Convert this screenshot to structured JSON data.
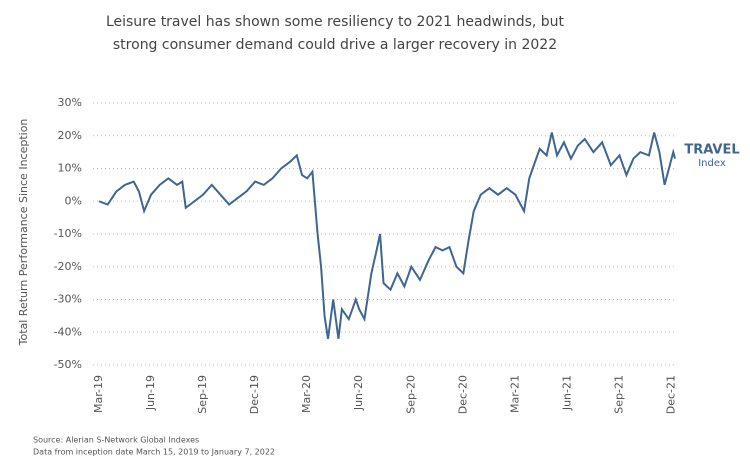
{
  "chart_data": {
    "type": "line",
    "title": [
      "Leisure travel has shown some resiliency to 2021 headwinds, but",
      "strong consumer demand could drive a larger recovery in 2022"
    ],
    "y_label": "Total Return Performance Since Inception",
    "sources": [
      "Source: Alerian S-Network Global Indexes",
      "Data from inception date March 15, 2019 to January 7, 2022"
    ],
    "x": [
      0,
      0.5,
      1,
      1.5,
      2,
      2.3,
      2.6,
      3,
      3.5,
      4,
      4.5,
      4.8,
      5,
      5.5,
      6,
      6.5,
      7,
      7.5,
      8,
      8.5,
      9,
      9.5,
      10,
      10.5,
      11,
      11.4,
      11.7,
      12,
      12.3,
      12.6,
      12.8,
      13,
      13.2,
      13.5,
      13.8,
      14,
      14.4,
      14.8,
      15,
      15.3,
      15.7,
      16,
      16.2,
      16.4,
      16.8,
      17.2,
      17.6,
      18,
      18.5,
      19,
      19.4,
      19.8,
      20.2,
      20.6,
      21,
      21.3,
      21.6,
      22,
      22.5,
      23,
      23.5,
      24,
      24.5,
      24.8,
      25,
      25.4,
      25.8,
      26.1,
      26.4,
      26.8,
      27.2,
      27.6,
      28,
      28.5,
      29,
      29.5,
      30,
      30.4,
      30.8,
      31.2,
      31.7,
      32,
      32.3,
      32.6,
      32.9,
      33.1,
      33.2
    ],
    "series": [
      {
        "name": "TRAVEL",
        "sublabel": "Index",
        "color": "#3f6593",
        "values": [
          0,
          -1,
          3,
          5,
          6,
          3,
          -3,
          2,
          5,
          7,
          5,
          6,
          -2,
          0,
          2,
          5,
          2,
          -1,
          1,
          3,
          6,
          5,
          7,
          10,
          12,
          14,
          8,
          7,
          9,
          -10,
          -20,
          -35,
          -42,
          -30,
          -42,
          -33,
          -36,
          -30,
          -33,
          -36,
          -22,
          -15,
          -10,
          -25,
          -27,
          -22,
          -26,
          -20,
          -24,
          -18,
          -14,
          -15,
          -14,
          -20,
          -22,
          -12,
          -3,
          2,
          4,
          2,
          4,
          2,
          -3,
          7,
          10,
          16,
          14,
          21,
          14,
          18,
          13,
          17,
          19,
          15,
          18,
          11,
          14,
          8,
          13,
          15,
          14,
          21,
          15,
          5,
          11,
          15,
          13
        ]
      }
    ],
    "xlim": [
      0,
      33.2
    ],
    "xticks": [
      {
        "value": 0,
        "label": "Mar-19"
      },
      {
        "value": 3,
        "label": "Jun-19"
      },
      {
        "value": 6,
        "label": "Sep-19"
      },
      {
        "value": 9,
        "label": "Dec-19"
      },
      {
        "value": 12,
        "label": "Mar-20"
      },
      {
        "value": 15,
        "label": "Jun-20"
      },
      {
        "value": 18,
        "label": "Sep-20"
      },
      {
        "value": 21,
        "label": "Dec-20"
      },
      {
        "value": 24,
        "label": "Mar-21"
      },
      {
        "value": 27,
        "label": "Jun-21"
      },
      {
        "value": 30,
        "label": "Sep-21"
      },
      {
        "value": 33,
        "label": "Dec-21"
      }
    ],
    "ylim": [
      -50,
      30
    ],
    "yticks": [
      {
        "value": 30,
        "label": "30%"
      },
      {
        "value": 20,
        "label": "20%"
      },
      {
        "value": 10,
        "label": "10%"
      },
      {
        "value": 0,
        "label": "0%"
      },
      {
        "value": -10,
        "label": "-10%"
      },
      {
        "value": -20,
        "label": "-20%"
      },
      {
        "value": -30,
        "label": "-30%"
      },
      {
        "value": -40,
        "label": "-40%"
      },
      {
        "value": -50,
        "label": "-50%"
      }
    ],
    "grid": true
  }
}
